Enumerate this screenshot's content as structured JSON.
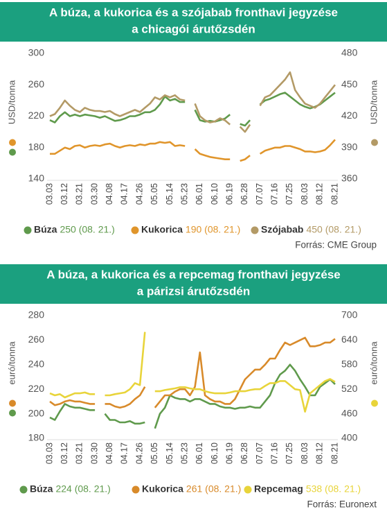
{
  "chart_data": [
    {
      "type": "line",
      "title": [
        "A búza, a kukorica és a szójabab fronthavi jegyzése",
        "a chicagói árutőzsdén"
      ],
      "ylabel": "USD/tonna",
      "y2label": "USD/tonna",
      "ylim": [
        140,
        300
      ],
      "yticks": [
        140,
        180,
        220,
        260,
        300
      ],
      "y2lim": [
        360,
        480
      ],
      "y2ticks": [
        360,
        390,
        420,
        450,
        480
      ],
      "categories": [
        "03.03",
        null,
        null,
        "03.12",
        null,
        null,
        "03.21",
        null,
        null,
        "03.30",
        null,
        null,
        "04.08",
        null,
        null,
        "04.17",
        null,
        null,
        "04.26",
        null,
        null,
        "05.05",
        null,
        null,
        "05.14",
        null,
        null,
        "05.23",
        null,
        null,
        "06.01",
        null,
        null,
        "06.10",
        null,
        null,
        "06.19",
        null,
        null,
        "06.28",
        null,
        null,
        "07.07",
        null,
        null,
        "07.16",
        null,
        null,
        "07.25",
        null,
        null,
        "08.03",
        null,
        null,
        "08.12",
        null,
        null,
        "08.21"
      ],
      "series": [
        {
          "name": "Búza",
          "color": "#5f9a4c",
          "axis": "y",
          "legend_label": "250 (08. 21.)",
          "values": [
            215,
            212,
            220,
            225,
            220,
            222,
            220,
            222,
            221,
            220,
            218,
            220,
            217,
            214,
            215,
            217,
            220,
            220,
            222,
            225,
            225,
            228,
            235,
            245,
            240,
            242,
            238,
            238,
            null,
            228,
            215,
            213,
            214,
            213,
            215,
            217,
            222,
            null,
            210,
            208,
            215,
            null,
            235,
            240,
            242,
            245,
            248,
            250,
            245,
            240,
            235,
            232,
            230,
            232,
            235,
            240,
            245,
            250
          ]
        },
        {
          "name": "Kukorica",
          "color": "#e0952b",
          "axis": "y",
          "legend_label": "190 (08. 21.)",
          "values": [
            172,
            172,
            176,
            180,
            178,
            182,
            183,
            180,
            182,
            183,
            182,
            184,
            185,
            182,
            180,
            182,
            183,
            182,
            184,
            183,
            185,
            185,
            187,
            186,
            187,
            182,
            183,
            182,
            null,
            178,
            172,
            170,
            168,
            167,
            166,
            165,
            165,
            null,
            163,
            165,
            170,
            null,
            172,
            176,
            178,
            180,
            180,
            182,
            182,
            180,
            178,
            175,
            175,
            174,
            175,
            177,
            183,
            190
          ]
        },
        {
          "name": "Szójabab",
          "color": "#b39a66",
          "axis": "y2",
          "legend_label": "450 (08. 21.)",
          "values": [
            420,
            422,
            428,
            435,
            430,
            426,
            424,
            428,
            426,
            425,
            425,
            424,
            425,
            422,
            420,
            422,
            424,
            426,
            424,
            428,
            432,
            438,
            436,
            440,
            438,
            440,
            436,
            435,
            null,
            432,
            420,
            416,
            414,
            415,
            418,
            416,
            412,
            null,
            410,
            405,
            412,
            null,
            430,
            438,
            440,
            445,
            450,
            455,
            462,
            445,
            438,
            432,
            430,
            428,
            432,
            438,
            444,
            450
          ]
        }
      ],
      "source": "Forrás: CME Group"
    },
    {
      "type": "line",
      "title": [
        "A búza, a kukorica és a repcemag fronthavi jegyzése",
        "a párizsi árutőzsdén"
      ],
      "ylabel": "euró/tonna",
      "y2label": "euró/tonna",
      "ylim": [
        180,
        280
      ],
      "yticks": [
        180,
        200,
        220,
        240,
        260,
        280
      ],
      "y2lim": [
        400,
        700
      ],
      "y2ticks": [
        400,
        460,
        520,
        580,
        640,
        700
      ],
      "categories": [
        "03.03",
        null,
        null,
        "03.12",
        null,
        null,
        "03.21",
        null,
        null,
        "03.30",
        null,
        null,
        "04.08",
        null,
        null,
        "04.17",
        null,
        null,
        "04.26",
        null,
        null,
        "05.05",
        null,
        null,
        "05.14",
        null,
        null,
        "05.23",
        null,
        null,
        "06.01",
        null,
        null,
        "06.10",
        null,
        null,
        "06.19",
        null,
        null,
        "06.28",
        null,
        null,
        "07.07",
        null,
        null,
        "07.16",
        null,
        null,
        "07.25",
        null,
        null,
        "08.03",
        null,
        null,
        "08.12",
        null,
        null,
        "08.21"
      ],
      "series": [
        {
          "name": "Búza",
          "color": "#5f9a4c",
          "axis": "y",
          "legend_label": "224 (08. 21.)",
          "values": [
            197,
            195,
            202,
            208,
            206,
            205,
            205,
            204,
            203,
            203,
            null,
            200,
            195,
            195,
            193,
            193,
            194,
            192,
            192,
            193,
            null,
            188,
            200,
            205,
            215,
            213,
            212,
            212,
            210,
            212,
            212,
            210,
            208,
            208,
            206,
            205,
            205,
            204,
            205,
            205,
            206,
            205,
            205,
            210,
            215,
            225,
            232,
            235,
            240,
            235,
            228,
            222,
            215,
            215,
            222,
            225,
            228,
            224
          ]
        },
        {
          "name": "Kukorica",
          "color": "#d88a2a",
          "axis": "y",
          "legend_label": "261 (08. 21.)",
          "values": [
            210,
            207,
            208,
            210,
            211,
            210,
            210,
            209,
            208,
            208,
            null,
            208,
            208,
            206,
            205,
            206,
            208,
            212,
            215,
            222,
            null,
            205,
            210,
            215,
            215,
            218,
            220,
            220,
            215,
            222,
            250,
            215,
            212,
            210,
            210,
            208,
            208,
            212,
            220,
            228,
            232,
            236,
            236,
            240,
            245,
            245,
            252,
            258,
            256,
            258,
            260,
            262,
            255,
            255,
            256,
            258,
            258,
            261
          ]
        },
        {
          "name": "Repcemag",
          "color": "#e8d43a",
          "axis": "y2",
          "legend_label": "538 (08. 21.)",
          "values": [
            510,
            505,
            508,
            500,
            505,
            510,
            510,
            512,
            508,
            508,
            null,
            505,
            505,
            508,
            510,
            512,
            520,
            535,
            530,
            660,
            null,
            515,
            515,
            518,
            520,
            522,
            525,
            525,
            522,
            520,
            520,
            515,
            512,
            510,
            510,
            510,
            512,
            515,
            515,
            515,
            518,
            520,
            520,
            528,
            535,
            535,
            540,
            540,
            530,
            520,
            518,
            465,
            510,
            520,
            530,
            540,
            545,
            538
          ]
        }
      ],
      "source": "Forrás: Euronext"
    }
  ]
}
